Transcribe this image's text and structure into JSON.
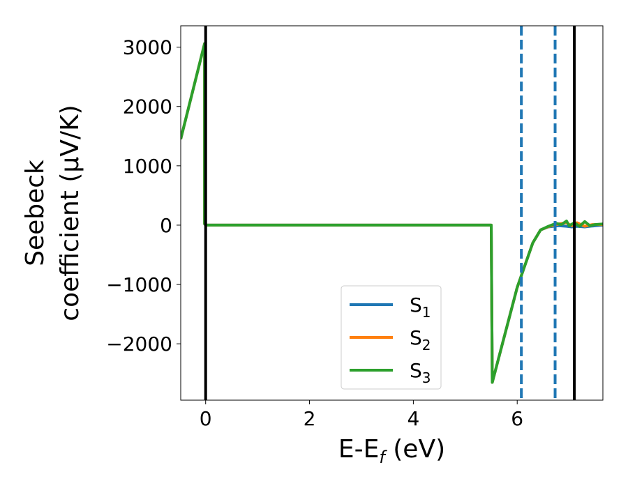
{
  "chart_data": {
    "type": "line",
    "xlabel": "E-E",
    "xlabel_sub": "f",
    "xlabel_unit": " (eV)",
    "ylabel_line1": "Seebeck",
    "ylabel_line2": "coefficient  (μV/K)",
    "xlim": [
      -0.48,
      7.65
    ],
    "ylim": [
      -2950,
      3360
    ],
    "xticks": [
      0,
      2,
      4,
      6
    ],
    "yticks": [
      3000,
      2000,
      1000,
      0,
      -1000,
      -2000
    ],
    "grid": false,
    "legend_position": "lower-center",
    "colors": {
      "s1": "#1f77b4",
      "s2": "#ff7f0e",
      "s3": "#2ca02c",
      "solid_vline": "#000000",
      "dashed_vline": "#1f77b4"
    },
    "vlines_solid": [
      0,
      7.1
    ],
    "vlines_dashed": [
      6.08,
      6.73
    ],
    "series": [
      {
        "name": "S",
        "sub": "1",
        "x": [
          -0.48,
          -0.02,
          -0.02,
          0.0,
          5.5,
          5.52,
          6.0,
          6.3,
          6.45,
          6.6,
          6.8,
          6.95,
          7.05,
          7.15,
          7.3,
          7.45,
          7.65
        ],
        "y": [
          1450,
          3060,
          20,
          0,
          0,
          -2650,
          -1050,
          -300,
          -80,
          -30,
          -10,
          -20,
          -30,
          -20,
          -30,
          -15,
          0
        ]
      },
      {
        "name": "S",
        "sub": "2",
        "x": [
          -0.48,
          -0.02,
          -0.02,
          0.0,
          5.5,
          5.52,
          6.0,
          6.3,
          6.45,
          6.6,
          6.8,
          6.95,
          7.05,
          7.15,
          7.3,
          7.45,
          7.65
        ],
        "y": [
          1450,
          3060,
          20,
          0,
          0,
          -2650,
          -1050,
          -300,
          -80,
          -25,
          20,
          40,
          -10,
          40,
          -20,
          10,
          10
        ]
      },
      {
        "name": "S",
        "sub": "3",
        "x": [
          -0.48,
          -0.02,
          -0.02,
          0.0,
          5.5,
          5.52,
          6.0,
          6.3,
          6.45,
          6.6,
          6.75,
          6.85,
          6.95,
          7.0,
          7.1,
          7.2,
          7.3,
          7.4,
          7.5,
          7.65
        ],
        "y": [
          1450,
          3060,
          20,
          0,
          0,
          -2650,
          -1050,
          -300,
          -80,
          -20,
          30,
          10,
          70,
          -10,
          40,
          -20,
          60,
          -10,
          10,
          20
        ]
      }
    ]
  }
}
